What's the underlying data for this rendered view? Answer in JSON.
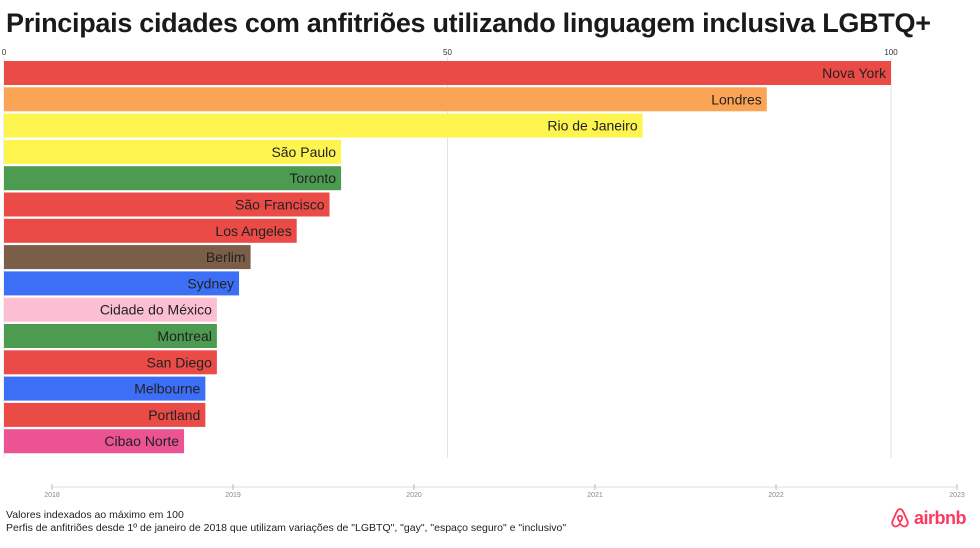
{
  "brand": {
    "name": "airbnb",
    "color": "#ff385c"
  },
  "footer": {
    "note1": "Valores indexados ao máximo em 100",
    "note2": "Perfis de anfitriões desde 1º de janeiro de 2018 que utilizam variações de \"LGBTQ\", \"gay\", \"espaço seguro\" e \"inclusivo\""
  },
  "chart_data": {
    "type": "bar",
    "orientation": "horizontal",
    "title": "Principais cidades com anfitriões utilizando linguagem inclusiva LGBTQ+",
    "xlabel": "",
    "ylabel": "",
    "xlim": [
      0,
      100
    ],
    "xticks": [
      "0",
      "50",
      "100"
    ],
    "timeline_ticks": [
      "2018",
      "2019",
      "2020",
      "2021",
      "2022",
      "2023"
    ],
    "grid": true,
    "categories": [
      "Nova York",
      "Londres",
      "Rio de Janeiro",
      "São Paulo",
      "Toronto",
      "São Francisco",
      "Los Angeles",
      "Berlim",
      "Sydney",
      "Cidade do México",
      "Montreal",
      "San Diego",
      "Melbourne",
      "Portland",
      "Cibao Norte"
    ],
    "values": [
      100,
      86,
      72,
      38,
      38,
      36.7,
      33,
      27.8,
      26.5,
      24,
      24,
      24,
      22.7,
      22.7,
      20.3
    ],
    "colors": [
      "#ea4b46",
      "#fba456",
      "#fdf450",
      "#fdf450",
      "#4d9a51",
      "#ea4b46",
      "#ea4b46",
      "#7b5e47",
      "#3d6ff6",
      "#fbbed2",
      "#4d9a51",
      "#ea4b46",
      "#3d6ff6",
      "#ea4b46",
      "#ec5392"
    ]
  }
}
